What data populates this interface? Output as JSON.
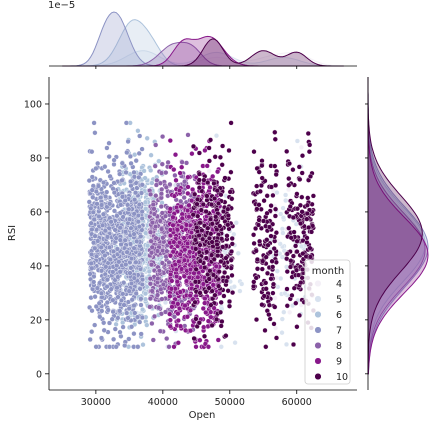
{
  "chart_data": {
    "type": "scatter",
    "subtype": "jointplot",
    "xlabel": "Open",
    "ylabel": "RSI",
    "marginal_scale_label": "1e−5",
    "xlim": [
      23000,
      69000
    ],
    "ylim": [
      -6,
      110
    ],
    "xticks": [
      30000,
      40000,
      50000,
      60000
    ],
    "yticks": [
      0,
      20,
      40,
      60,
      80,
      100
    ],
    "hue_title": "month",
    "months": [
      {
        "label": "4",
        "color": "#f4f0f7",
        "x_ranges": [
          [
            45000,
            49000
          ],
          [
            55500,
            62500
          ]
        ],
        "y_mean": 46,
        "y_sd": 15,
        "n": 60
      },
      {
        "label": "5",
        "color": "#d8e2ef",
        "x_ranges": [
          [
            35500,
            42000
          ],
          [
            46500,
            52000
          ],
          [
            56000,
            61500
          ]
        ],
        "y_mean": 45,
        "y_sd": 16,
        "n": 160
      },
      {
        "label": "6",
        "color": "#adc3dc",
        "x_ranges": [
          [
            33000,
            40000
          ]
        ],
        "y_mean": 48,
        "y_sd": 15,
        "n": 600
      },
      {
        "label": "7",
        "color": "#8c93c4",
        "x_ranges": [
          [
            29000,
            37000
          ]
        ],
        "y_mean": 47,
        "y_sd": 15,
        "n": 900
      },
      {
        "label": "8",
        "color": "#8c62aa",
        "x_ranges": [
          [
            38000,
            45000
          ]
        ],
        "y_mean": 46,
        "y_sd": 15,
        "n": 550
      },
      {
        "label": "9",
        "color": "#88188a",
        "x_ranges": [
          [
            41000,
            48500
          ]
        ],
        "y_mean": 45,
        "y_sd": 15,
        "n": 650
      },
      {
        "label": "10",
        "color": "#4d004b",
        "x_ranges": [
          [
            44500,
            50500
          ],
          [
            53500,
            57000
          ],
          [
            58500,
            62500
          ]
        ],
        "y_mean": 50,
        "y_sd": 15,
        "n": 600
      }
    ],
    "x_marginal": [
      {
        "month": "4",
        "peaks": [
          [
            48000,
            2500,
            0.5
          ],
          [
            57000,
            3000,
            0.6
          ],
          [
            60500,
            2000,
            0.4
          ]
        ]
      },
      {
        "month": "5",
        "peaks": [
          [
            37000,
            2500,
            0.9
          ],
          [
            48000,
            2500,
            0.8
          ],
          [
            58000,
            2500,
            0.5
          ]
        ]
      },
      {
        "month": "6",
        "peaks": [
          [
            35500,
            2000,
            2.6
          ],
          [
            38500,
            1500,
            0.8
          ]
        ]
      },
      {
        "month": "7",
        "peaks": [
          [
            33000,
            1800,
            3.0
          ],
          [
            31000,
            1200,
            0.6
          ]
        ]
      },
      {
        "month": "8",
        "peaks": [
          [
            41500,
            2000,
            1.2
          ],
          [
            44500,
            1500,
            0.8
          ]
        ]
      },
      {
        "month": "9",
        "peaks": [
          [
            43000,
            1500,
            1.3
          ],
          [
            47000,
            2000,
            1.7
          ]
        ]
      },
      {
        "month": "10",
        "peaks": [
          [
            47500,
            1500,
            1.6
          ],
          [
            55000,
            1800,
            0.9
          ],
          [
            60000,
            1500,
            0.8
          ]
        ]
      }
    ],
    "y_marginal": [
      {
        "month": "4",
        "peaks": [
          [
            47,
            14,
            1.0
          ]
        ]
      },
      {
        "month": "5",
        "peaks": [
          [
            46,
            15,
            1.0
          ]
        ]
      },
      {
        "month": "6",
        "peaks": [
          [
            48,
            14,
            1.0
          ]
        ]
      },
      {
        "month": "7",
        "peaks": [
          [
            47,
            15,
            1.05
          ]
        ]
      },
      {
        "month": "8",
        "peaks": [
          [
            46,
            14,
            1.0
          ]
        ]
      },
      {
        "month": "9",
        "peaks": [
          [
            44,
            14,
            1.05
          ]
        ]
      },
      {
        "month": "10",
        "peaks": [
          [
            52,
            14,
            0.95
          ]
        ]
      }
    ],
    "legend_position": "lower right",
    "grid": false
  }
}
